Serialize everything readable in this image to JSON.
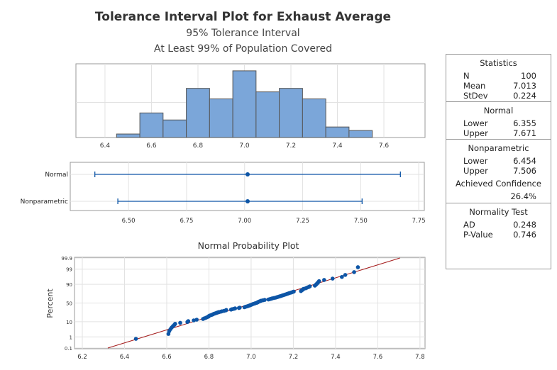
{
  "title": "Tolerance Interval Plot for Exhaust Average",
  "subtitle1": "95% Tolerance Interval",
  "subtitle2": "At Least 99% of Population Covered",
  "colors": {
    "bar_fill": "#7ba6d9",
    "bar_stroke": "#555555",
    "point": "#0d55a6",
    "fit_line": "#a41b1b",
    "grid": "#e2e2e2"
  },
  "chart_data": [
    {
      "type": "bar",
      "name": "histogram",
      "bin_edges": [
        6.45,
        6.55,
        6.65,
        6.75,
        6.85,
        6.95,
        7.05,
        7.15,
        7.25,
        7.35,
        7.45,
        7.55
      ],
      "counts": [
        1,
        7,
        5,
        14,
        11,
        19,
        13,
        14,
        11,
        3,
        2
      ],
      "xlim": [
        6.275,
        7.777
      ],
      "ylim": [
        0,
        21
      ],
      "xticks": [
        "6.4",
        "6.6",
        "6.8",
        "7.0",
        "7.2",
        "7.4",
        "7.6"
      ],
      "grid": true
    },
    {
      "type": "interval",
      "name": "tolerance-intervals",
      "xlim": [
        6.249,
        7.774
      ],
      "xticks": [
        "6.50",
        "6.75",
        "7.00",
        "7.25",
        "7.50",
        "7.75"
      ],
      "series": [
        {
          "name": "Normal",
          "lower": 6.355,
          "center": 7.013,
          "upper": 7.671
        },
        {
          "name": "Nonparametric",
          "lower": 6.454,
          "center": 7.013,
          "upper": 7.506
        }
      ]
    },
    {
      "type": "scatter",
      "name": "normal-probability-plot",
      "title": "Normal Probability Plot",
      "ylabel": "Percent",
      "xlim": [
        6.163,
        7.824
      ],
      "xticks": [
        "6.2",
        "6.4",
        "6.6",
        "6.8",
        "7.0",
        "7.2",
        "7.4",
        "7.6",
        "7.8"
      ],
      "yticks": [
        "0.1",
        "1",
        "10",
        "50",
        "90",
        "99",
        "99.9"
      ],
      "fit": {
        "mean": 7.013,
        "stdev": 0.224
      },
      "x": [
        6.454,
        6.608,
        6.612,
        6.618,
        6.624,
        6.63,
        6.636,
        6.64,
        6.664,
        6.698,
        6.702,
        6.728,
        6.742,
        6.772,
        6.778,
        6.786,
        6.792,
        6.798,
        6.8,
        6.805,
        6.812,
        6.818,
        6.822,
        6.828,
        6.834,
        6.84,
        6.846,
        6.856,
        6.862,
        6.872,
        6.88,
        6.882,
        6.905,
        6.91,
        6.918,
        6.924,
        6.942,
        6.946,
        6.968,
        6.972,
        6.978,
        6.984,
        6.988,
        6.994,
        6.998,
        7.002,
        7.006,
        7.01,
        7.016,
        7.02,
        7.026,
        7.03,
        7.032,
        7.036,
        7.04,
        7.044,
        7.048,
        7.056,
        7.064,
        7.082,
        7.088,
        7.094,
        7.1,
        7.108,
        7.116,
        7.122,
        7.128,
        7.134,
        7.14,
        7.146,
        7.152,
        7.158,
        7.164,
        7.17,
        7.176,
        7.182,
        7.19,
        7.196,
        7.202,
        7.236,
        7.238,
        7.242,
        7.246,
        7.248,
        7.258,
        7.264,
        7.272,
        7.278,
        7.302,
        7.306,
        7.31,
        7.314,
        7.318,
        7.322,
        7.346,
        7.386,
        7.43,
        7.446,
        7.488,
        7.506
      ]
    }
  ],
  "stats": {
    "header": "Statistics",
    "rows": [
      {
        "label": "N",
        "value": "100"
      },
      {
        "label": "Mean",
        "value": "7.013"
      },
      {
        "label": "StDev",
        "value": "0.224"
      }
    ],
    "normal": {
      "header": "Normal",
      "lower_label": "Lower",
      "lower": "6.355",
      "upper_label": "Upper",
      "upper": "7.671"
    },
    "nonparametric": {
      "header": "Nonparametric",
      "lower_label": "Lower",
      "lower": "6.454",
      "upper_label": "Upper",
      "upper": "7.506",
      "achieved_label": "Achieved Confidence",
      "achieved": "26.4%"
    },
    "normality": {
      "header": "Normality Test",
      "ad_label": "AD",
      "ad": "0.248",
      "p_label": "P-Value",
      "p": "0.746"
    }
  }
}
